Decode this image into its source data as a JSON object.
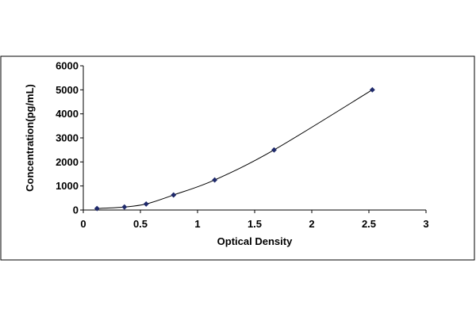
{
  "chart_data": {
    "type": "scatter",
    "title": "",
    "xlabel": "Optical Density",
    "ylabel": "Concentration(pg/mL)",
    "xlim": [
      0,
      3
    ],
    "ylim": [
      0,
      6000
    ],
    "xticks": [
      0,
      0.5,
      1,
      1.5,
      2,
      2.5,
      3
    ],
    "yticks": [
      0,
      1000,
      2000,
      3000,
      4000,
      5000,
      6000
    ],
    "xtick_labels": [
      "0",
      "0.5",
      "1",
      "1.5",
      "2",
      "2.5",
      "3"
    ],
    "ytick_labels": [
      "0",
      "1000",
      "2000",
      "3000",
      "4000",
      "5000",
      "6000"
    ],
    "grid": false,
    "legend": "none",
    "marker": "diamond",
    "trendline": "smooth curve",
    "series": [
      {
        "x": [
          0.12,
          0.36,
          0.55,
          0.79,
          1.15,
          1.67,
          2.53
        ],
        "y": [
          62,
          125,
          250,
          625,
          1250,
          2500,
          5000
        ],
        "color": "#1F2A6B"
      }
    ]
  }
}
